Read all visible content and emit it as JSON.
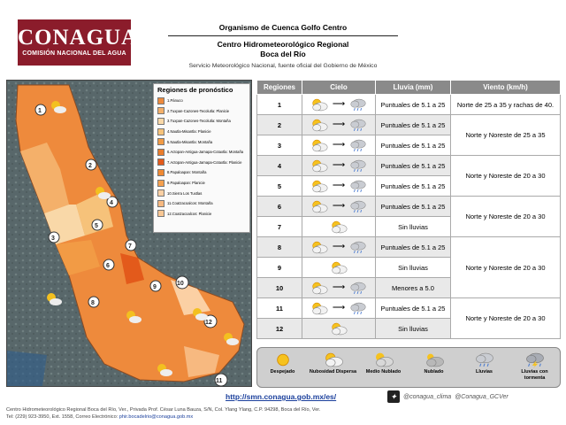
{
  "header": {
    "logo_text": "CONAGUA",
    "logo_subtext": "COMISIÓN NACIONAL DEL AGUA",
    "org_line": "Organismo de Cuenca Golfo Centro",
    "center_line": "Centro Hidrometeorológico Regional",
    "center_line2": "Boca del Río",
    "service_line": "Servicio Meteorológico Nacional, fuente oficial del Gobierno de México"
  },
  "legend": {
    "title": "Regiones de pronóstico",
    "items": [
      {
        "label": "1.Pánuco",
        "color": "#ee8a3c"
      },
      {
        "label": "2.Tuxpan-Cazones-Tecolutla: Planicie",
        "color": "#f4b06a"
      },
      {
        "label": "3.Tuxpan-Cazones-Tecolutla: Montaña",
        "color": "#f9d8a8"
      },
      {
        "label": "4.Nautla-Misantla: Planicie",
        "color": "#f6c27a"
      },
      {
        "label": "5.Nautla-Misantla: Montaña",
        "color": "#f29b45"
      },
      {
        "label": "6.Actopan-Antigua-Jamapa-Cotaxtla: Montaña",
        "color": "#ea7d2c"
      },
      {
        "label": "7.Actopan-Antigua-Jamapa-Cotaxtla: Planicie",
        "color": "#e35a1b"
      },
      {
        "label": "8.Papaloapan: Montaña",
        "color": "#f08a34"
      },
      {
        "label": "9.Papaloapan: Planicie",
        "color": "#f5a04e"
      },
      {
        "label": "10.Sierra Los Tuxtlas",
        "color": "#fbd0a4"
      },
      {
        "label": "11.Coatzacoalcos: Montaña",
        "color": "#f7b980"
      },
      {
        "label": "12.Coatzacoalcos: Planicie",
        "color": "#f8c794"
      }
    ]
  },
  "map": {
    "region_labels": [
      "1",
      "2",
      "3",
      "4",
      "5",
      "6",
      "7",
      "8",
      "9",
      "10",
      "11",
      "12"
    ]
  },
  "table": {
    "headers": [
      "Regiones",
      "Cielo",
      "Lluvia (mm)",
      "Viento (km/h)"
    ],
    "rows": [
      {
        "region": "1",
        "from": "partly-cloudy",
        "to": "rain",
        "rain": "Puntuales de 5.1 a 25"
      },
      {
        "region": "2",
        "from": "partly-cloudy",
        "to": "rain",
        "rain": "Puntuales de 5.1 a 25"
      },
      {
        "region": "3",
        "from": "partly-cloudy",
        "to": "rain",
        "rain": "Puntuales de 5.1 a 25"
      },
      {
        "region": "4",
        "from": "partly-cloudy",
        "to": "rain",
        "rain": "Puntuales de 5.1 a 25"
      },
      {
        "region": "5",
        "from": "partly-cloudy",
        "to": "rain",
        "rain": "Puntuales de 5.1 a 25"
      },
      {
        "region": "6",
        "from": "partly-cloudy",
        "to": "rain",
        "rain": "Puntuales de 5.1 a 25"
      },
      {
        "region": "7",
        "from": "",
        "to": "partly-cloudy",
        "rain": "Sin lluvias"
      },
      {
        "region": "8",
        "from": "partly-cloudy",
        "to": "rain",
        "rain": "Puntuales de 5.1 a 25"
      },
      {
        "region": "9",
        "from": "",
        "to": "partly-cloudy",
        "rain": "Sin lluvias"
      },
      {
        "region": "10",
        "from": "partly-cloudy",
        "to": "rain",
        "rain": "Menores a 5.0"
      },
      {
        "region": "11",
        "from": "partly-cloudy",
        "to": "rain",
        "rain": "Puntuales de 5.1 a 25"
      },
      {
        "region": "12",
        "from": "",
        "to": "partly-cloudy",
        "rain": "Sin lluvias"
      }
    ],
    "wind": [
      {
        "text": "Norte de 25 a 35 y rachas de 40."
      },
      {
        "text": "Norte y Noreste de 25 a 35"
      },
      {
        "text": "Norte y Noreste de 20 a 30"
      },
      {
        "text": "Norte y Noreste de 20 a 30"
      },
      {
        "text": "Norte y Noreste de 20 a 30"
      },
      {
        "text": "Norte y Noreste de 20 a 30"
      }
    ]
  },
  "icon_legend": [
    {
      "label": "Despejado",
      "icon": "sun-icon"
    },
    {
      "label": "Nubosidad Dispersa",
      "icon": "partly-cloudy-icon"
    },
    {
      "label": "Medio Nublado",
      "icon": "mostly-cloudy-icon"
    },
    {
      "label": "Nublado",
      "icon": "cloudy-icon"
    },
    {
      "label": "Lluvias",
      "icon": "rain-icon"
    },
    {
      "label": "Lluvias con tormenta",
      "icon": "thunderstorm-icon"
    }
  ],
  "links": {
    "url": "http://smn.conagua.gob.mx/es/",
    "twitter1": "@conagua_clima",
    "twitter2": "@Conagua_GCVer"
  },
  "footer": {
    "line1": "Centro Hidrometeorológico Regional Boca del Río, Ver., Privada Prof. César Luna Bauza, S/N, Col. Ylang Ylang, C.P. 94298, Boca del Río, Ver.",
    "line2_prefix": "Tel: (229) 923-3950, Ext. 1558, Correo Electrónico: ",
    "email": "phir.bocadelrio@conagua.gob.mx"
  }
}
